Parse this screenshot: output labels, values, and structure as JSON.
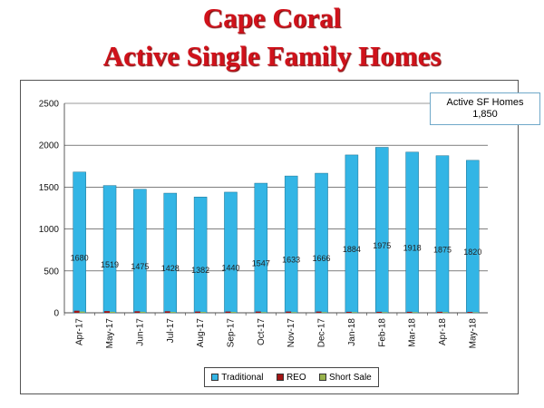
{
  "titles": {
    "line1": "Cape Coral",
    "line2": "Active Single Family Homes"
  },
  "callout": {
    "label": "Active SF Homes",
    "value": "1,850"
  },
  "colors": {
    "title": "#d0121b",
    "traditional": "#33b5e5",
    "reo": "#a31515",
    "short_sale": "#99b34c"
  },
  "chart_data": {
    "type": "bar",
    "stacked": true,
    "categories": [
      "Apr-17",
      "May-17",
      "Jun-17",
      "Jul-17",
      "Aug-17",
      "Sep-17",
      "Oct-17",
      "Nov-17",
      "Dec-17",
      "Jan-18",
      "Feb-18",
      "Mar-18",
      "Apr-18",
      "May-18"
    ],
    "category_labels": [
      "Apr-17",
      "May-17",
      "Jun-17",
      "Jul-17",
      "Aug-17",
      "Sep-17",
      "Oct-17",
      "Nov-17",
      "Dec-17",
      "Jan-18",
      "Feb-18",
      "Mar-18",
      "Apr-18",
      "May-18"
    ],
    "series": [
      {
        "name": "Traditional",
        "values": [
          1680,
          1519,
          1475,
          1428,
          1382,
          1440,
          1547,
          1633,
          1666,
          1884,
          1975,
          1918,
          1875,
          1820
        ],
        "labels": [
          "1680",
          "1519",
          "1475",
          "1428",
          "1382",
          "1440",
          "1547",
          "1633",
          "1666",
          "1884",
          "1975",
          "1918",
          "1875",
          "1820"
        ]
      },
      {
        "name": "REO",
        "values": [
          25,
          20,
          18,
          18,
          15,
          15,
          15,
          15,
          15,
          12,
          12,
          12,
          12,
          10
        ]
      },
      {
        "name": "Short Sale",
        "values": [
          15,
          12,
          12,
          10,
          10,
          10,
          8,
          8,
          8,
          8,
          8,
          8,
          8,
          6
        ]
      }
    ],
    "ylim": [
      0,
      2500
    ],
    "yticks": [
      "0",
      "500",
      "1000",
      "1500",
      "2000",
      "2500"
    ],
    "grid": true,
    "legend_position": "bottom"
  }
}
